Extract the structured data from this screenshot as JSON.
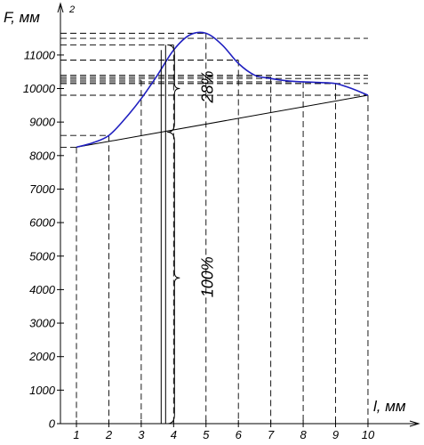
{
  "chart_data": {
    "type": "line",
    "xlabel": "l, мм",
    "ylabel": "F, мм",
    "ylabel_sup": "2",
    "xlim": [
      0.5,
      10.5
    ],
    "ylim": [
      0,
      11500
    ],
    "x_ticks": [
      1,
      2,
      3,
      4,
      5,
      6,
      7,
      8,
      9,
      10
    ],
    "y_ticks": [
      0,
      1000,
      2000,
      3000,
      4000,
      5000,
      6000,
      7000,
      8000,
      9000,
      10000,
      11000
    ],
    "series": [
      {
        "x": [
          1,
          1.5,
          2,
          2.5,
          3,
          3.5,
          4,
          4.5,
          5,
          5.5,
          6,
          6.5,
          7,
          7.5,
          8,
          8.5,
          9,
          9.5,
          10
        ],
        "values": [
          8250,
          8380,
          8600,
          9100,
          9700,
          10400,
          11150,
          11600,
          11650,
          11300,
          10750,
          10400,
          10300,
          10230,
          10200,
          10180,
          10150,
          10000,
          9800
        ]
      }
    ],
    "reference_line": {
      "x": [
        1,
        10
      ],
      "y": [
        8250,
        9800
      ]
    },
    "dashed_levels": [
      {
        "x": 1,
        "y": 8250
      },
      {
        "x": 2,
        "y": 8600
      },
      {
        "x": 3,
        "y": 10250
      },
      {
        "x": 4,
        "y": 11300
      },
      {
        "x": 5,
        "y": 11650
      },
      {
        "x": 6,
        "y": 10850
      },
      {
        "x": 7,
        "y": 10350
      },
      {
        "x": 8,
        "y": 10200
      },
      {
        "x": 9,
        "y": 10150
      },
      {
        "x": 10,
        "y": 9800
      }
    ],
    "extra_levels": [
      11500,
      10400,
      10300,
      10150,
      9800
    ],
    "annotations": [
      {
        "text": "28%",
        "x": 4,
        "y_from": 8700,
        "y_to": 11300
      },
      {
        "text": "100%",
        "x": 4,
        "y_from": 0,
        "y_to": 8700
      }
    ]
  }
}
